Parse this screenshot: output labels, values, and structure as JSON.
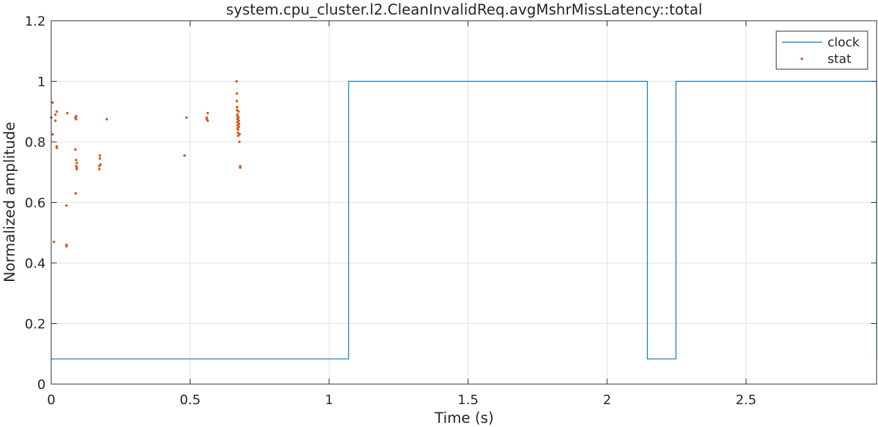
{
  "chart_data": {
    "type": "line",
    "title": "system.cpu_cluster.l2.CleanInvalidReq.avgMshrMissLatency::total",
    "xlabel": "Time (s)",
    "ylabel": "Normalized amplitude",
    "xlim": [
      0,
      2.97
    ],
    "ylim": [
      0,
      1.2
    ],
    "xticks": [
      0,
      0.5,
      1,
      1.5,
      2,
      2.5
    ],
    "xtick_labels": [
      "0",
      "0.5",
      "1",
      "1.5",
      "2",
      "2.5"
    ],
    "yticks": [
      0,
      0.2,
      0.4,
      0.6,
      0.8,
      1,
      1.2
    ],
    "ytick_labels": [
      "0",
      "0.2",
      "0.4",
      "0.6",
      "0.8",
      "1",
      "1.2"
    ],
    "grid": true,
    "legend_position": "top-right",
    "series": [
      {
        "name": "clock",
        "kind": "line",
        "color": "#0072BD",
        "x": [
          0,
          1.07,
          1.07,
          2.145,
          2.145,
          2.248,
          2.248,
          2.97,
          2.97
        ],
        "y": [
          0.083,
          0.083,
          1,
          1,
          0.083,
          0.083,
          1,
          1,
          0.083
        ]
      },
      {
        "name": "stat",
        "kind": "scatter",
        "color": "#D95319",
        "x": [
          0.0,
          0.005,
          0.005,
          0.01,
          0.015,
          0.015,
          0.02,
          0.02,
          0.02,
          0.055,
          0.055,
          0.055,
          0.058,
          0.087,
          0.087,
          0.088,
          0.09,
          0.09,
          0.09,
          0.09,
          0.092,
          0.092,
          0.092,
          0.173,
          0.173,
          0.175,
          0.175,
          0.177,
          0.2,
          0.48,
          0.487,
          0.56,
          0.56,
          0.563,
          0.563,
          0.667,
          0.668,
          0.668,
          0.669,
          0.669,
          0.67,
          0.67,
          0.67,
          0.67,
          0.671,
          0.671,
          0.672,
          0.672,
          0.673,
          0.674,
          0.674,
          0.675,
          0.675,
          0.676,
          0.677,
          0.678,
          0.68,
          0.68
        ],
        "y": [
          0.88,
          0.93,
          0.825,
          0.47,
          0.87,
          0.89,
          0.9,
          0.78,
          0.785,
          0.455,
          0.46,
          0.59,
          0.895,
          0.88,
          0.775,
          0.63,
          0.875,
          0.885,
          0.74,
          0.72,
          0.71,
          0.73,
          0.715,
          0.72,
          0.71,
          0.755,
          0.745,
          0.725,
          0.875,
          0.755,
          0.88,
          0.875,
          0.88,
          0.895,
          0.87,
          1.0,
          0.96,
          0.935,
          0.915,
          0.905,
          0.89,
          0.885,
          0.875,
          0.865,
          0.855,
          0.845,
          0.84,
          0.83,
          0.82,
          0.88,
          0.9,
          0.87,
          0.85,
          0.86,
          0.8,
          0.825,
          0.72,
          0.715
        ]
      }
    ]
  }
}
